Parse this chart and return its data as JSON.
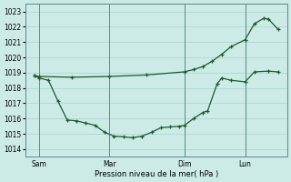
{
  "xlabel": "Pression niveau de la mer( hPa )",
  "bg_color": "#cceae6",
  "grid_color": "#aad4d0",
  "line_color": "#1a5c2a",
  "ylim": [
    1013.5,
    1023.5
  ],
  "yticks": [
    1014,
    1015,
    1016,
    1017,
    1018,
    1019,
    1020,
    1021,
    1022,
    1023
  ],
  "xlim": [
    -1,
    27
  ],
  "xtick_labels": [
    "Sam",
    "Mar",
    "Dim",
    "Lun"
  ],
  "xtick_positions": [
    0.5,
    8,
    16,
    22.5
  ],
  "vline_positions": [
    0.5,
    8,
    16,
    22.5
  ],
  "line1_x": [
    0,
    0.5,
    1.5,
    2.5,
    3.5,
    4.5,
    5.5,
    6.5,
    7.5,
    8.5,
    9.5,
    10.5,
    11.5,
    12.5,
    13.5,
    14.5,
    15.5,
    16,
    17,
    18,
    18.5,
    19.5,
    20,
    21,
    22.5,
    23.5,
    25,
    26
  ],
  "line1_y": [
    1018.8,
    1018.65,
    1018.5,
    1017.15,
    1015.9,
    1015.85,
    1015.7,
    1015.55,
    1015.1,
    1014.85,
    1014.8,
    1014.75,
    1014.85,
    1015.1,
    1015.4,
    1015.45,
    1015.5,
    1015.55,
    1016.0,
    1016.4,
    1016.5,
    1018.25,
    1018.65,
    1018.5,
    1018.4,
    1019.05,
    1019.1,
    1019.05
  ],
  "line2_x": [
    0,
    0.5,
    4,
    8,
    12,
    16,
    17,
    18,
    19,
    20,
    21,
    22.5,
    23.5,
    24.5,
    25,
    26
  ],
  "line2_y": [
    1018.8,
    1018.75,
    1018.7,
    1018.75,
    1018.85,
    1019.05,
    1019.2,
    1019.4,
    1019.75,
    1020.2,
    1020.7,
    1021.15,
    1022.2,
    1022.55,
    1022.5,
    1021.85
  ]
}
